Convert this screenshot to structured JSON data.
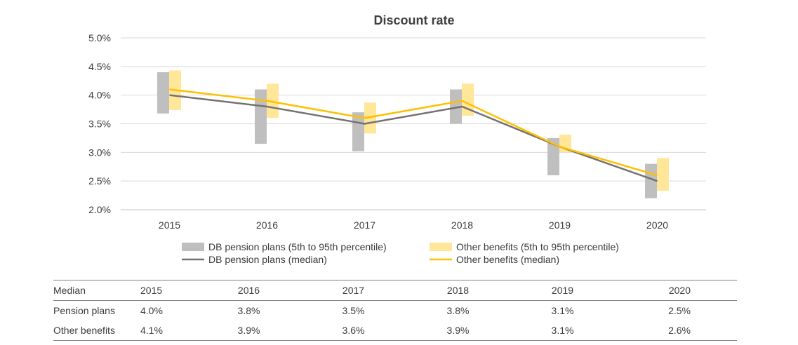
{
  "chart_data": {
    "type": "line",
    "title": "Discount rate",
    "categories": [
      "2015",
      "2016",
      "2017",
      "2018",
      "2019",
      "2020"
    ],
    "ylim": [
      2.0,
      5.0
    ],
    "yticks": [
      "2.0%",
      "2.5%",
      "3.0%",
      "3.5%",
      "4.0%",
      "4.5%",
      "5.0%"
    ],
    "grid": true,
    "legend_position": "bottom",
    "series": [
      {
        "name": "DB pension plans (5th to 95th percentile)",
        "type": "range",
        "color": "#bfbfbf",
        "low": [
          3.68,
          3.15,
          3.02,
          3.5,
          2.6,
          2.2
        ],
        "high": [
          4.4,
          4.1,
          3.7,
          4.1,
          3.25,
          2.8
        ]
      },
      {
        "name": "Other benefits (5th to 95th percentile)",
        "type": "range",
        "color": "#ffe699",
        "low": [
          3.74,
          3.6,
          3.33,
          3.64,
          3.0,
          2.33
        ],
        "high": [
          4.43,
          4.2,
          3.87,
          4.2,
          3.31,
          2.9
        ]
      },
      {
        "name": "DB pension plans (median)",
        "type": "line",
        "color": "#767171",
        "values": [
          4.0,
          3.8,
          3.5,
          3.8,
          3.1,
          2.5
        ]
      },
      {
        "name": "Other benefits (median)",
        "type": "line",
        "color": "#ffc000",
        "values": [
          4.1,
          3.9,
          3.6,
          3.9,
          3.1,
          2.6
        ]
      }
    ]
  },
  "table": {
    "header": [
      "Median",
      "2015",
      "2016",
      "2017",
      "2018",
      "2019",
      "2020"
    ],
    "rows": [
      {
        "label": "Pension plans",
        "values": [
          "4.0%",
          "3.8%",
          "3.5%",
          "3.8%",
          "3.1%",
          "2.5%"
        ]
      },
      {
        "label": "Other benefits",
        "values": [
          "4.1%",
          "3.9%",
          "3.6%",
          "3.9%",
          "3.1%",
          "2.6%"
        ]
      }
    ]
  }
}
